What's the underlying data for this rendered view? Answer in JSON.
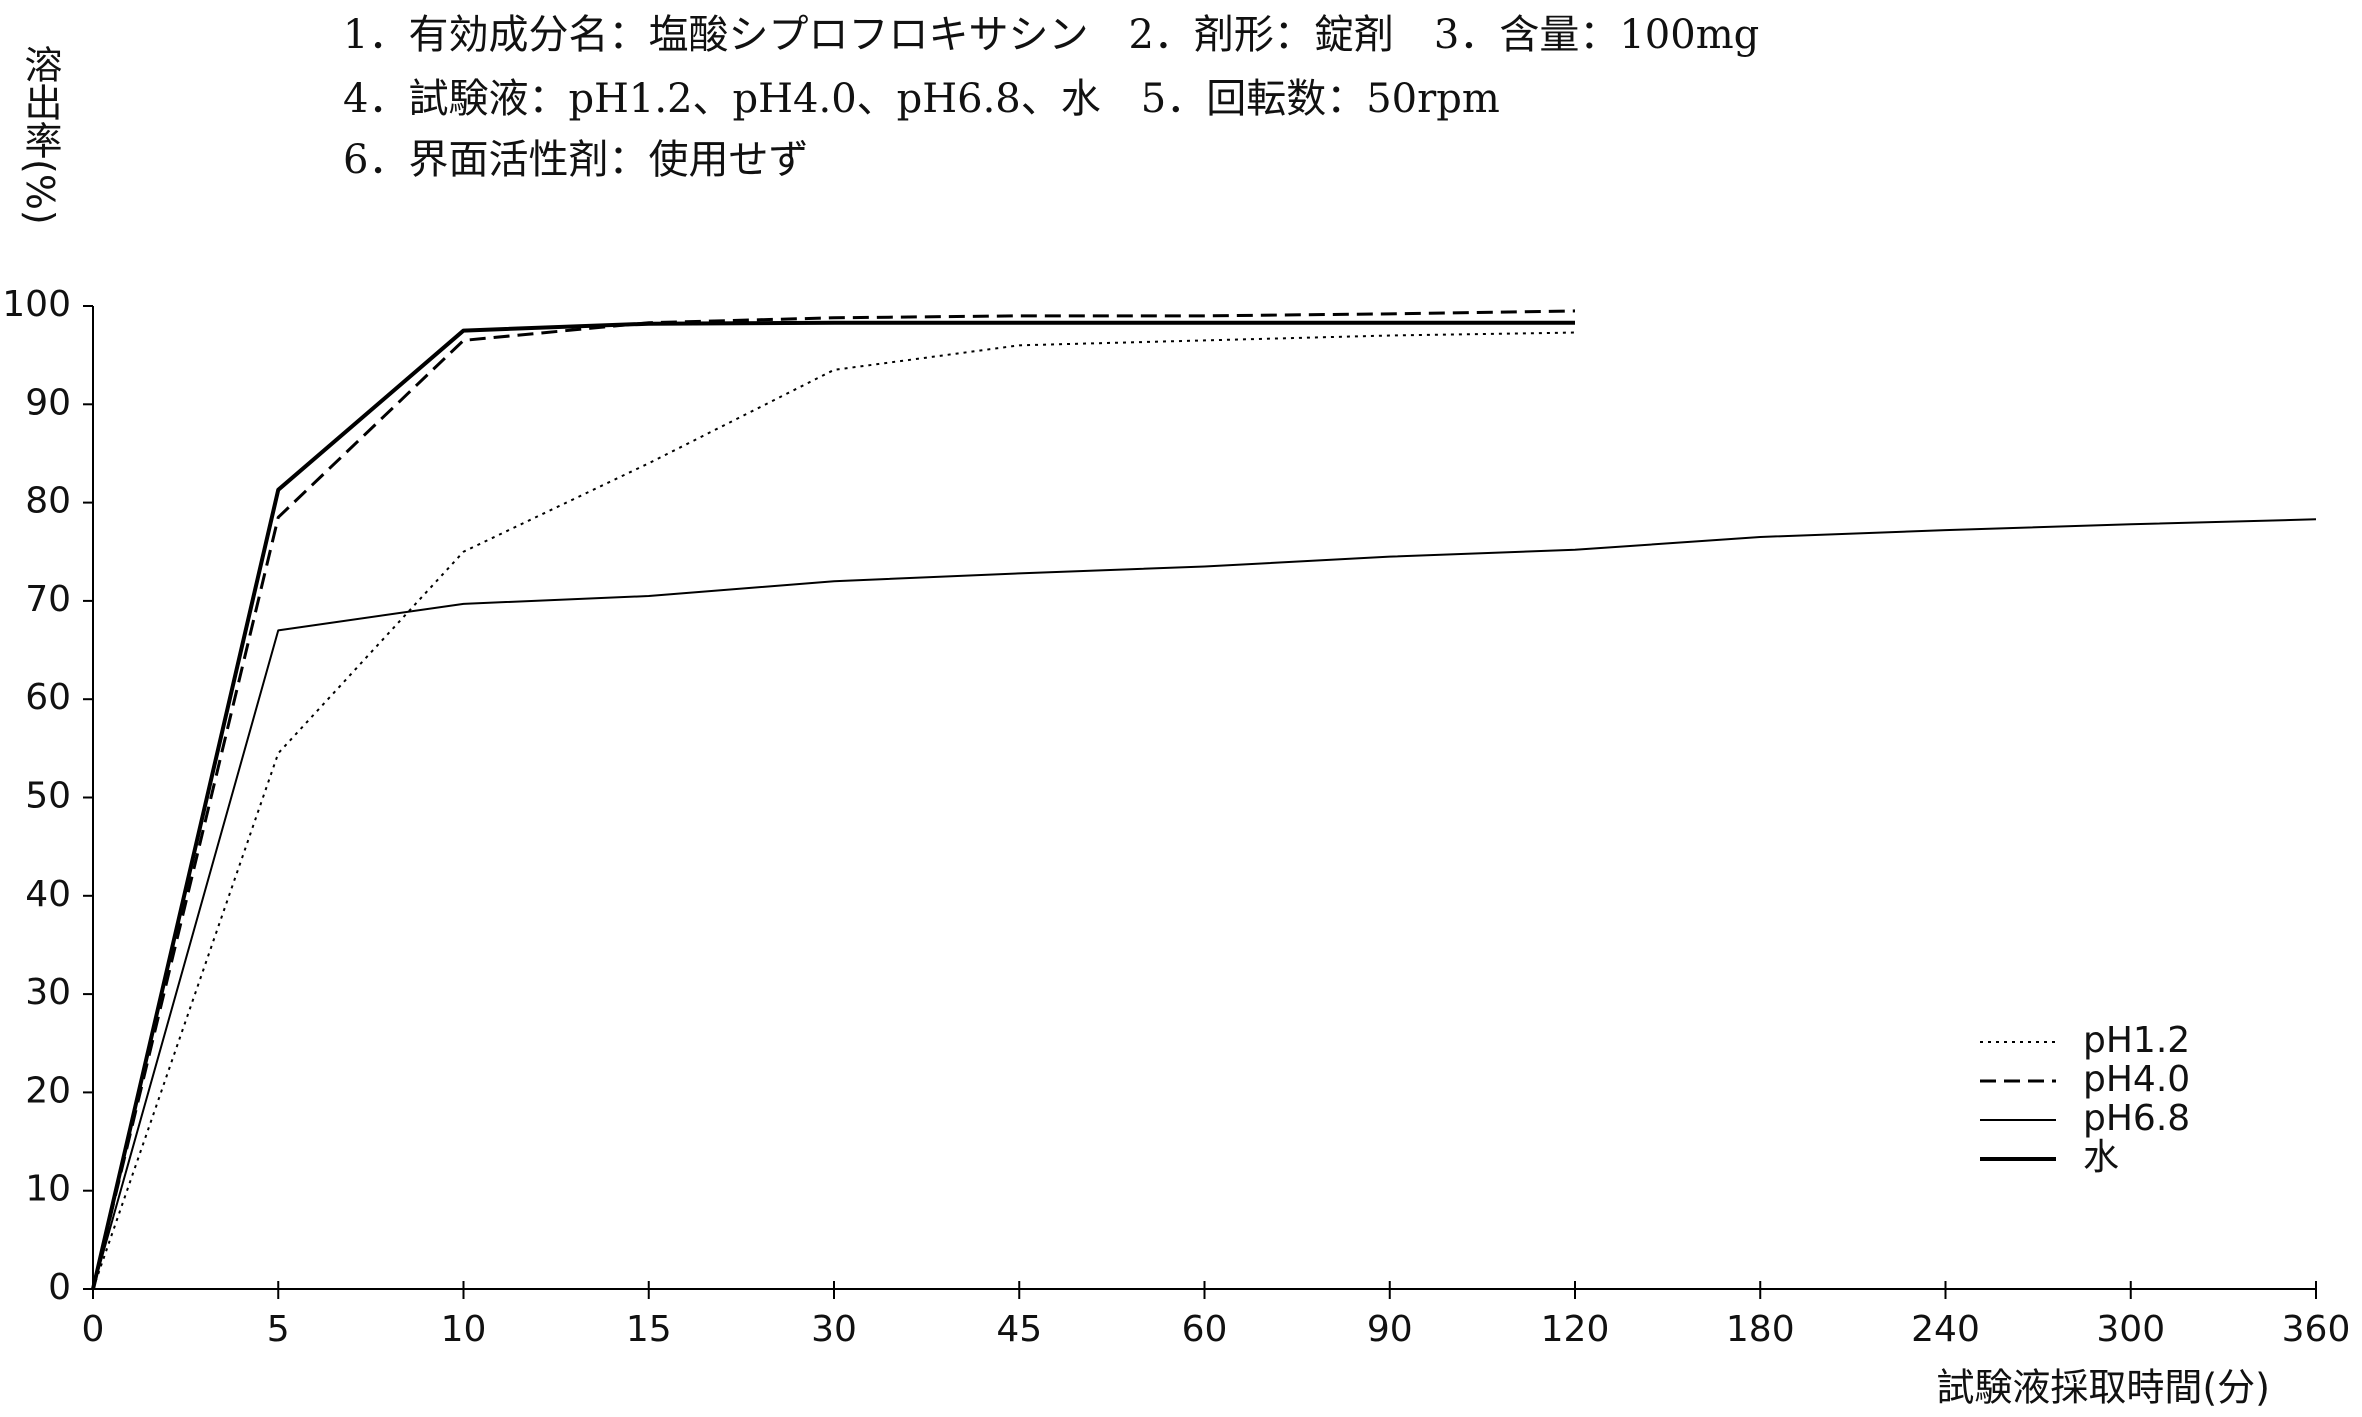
{
  "chart_data": {
    "type": "line",
    "annotations": [
      "1．有効成分名：塩酸シプロフロキサシン　2．剤形：錠剤　3．含量：100mg",
      "4．試験液：pH1.2、pH4.0、pH6.8、水　5．回転数：50rpm",
      "6．界面活性剤：使用せず"
    ],
    "y_label": "溶出率(%)",
    "x_label": "試験液採取時間(分)",
    "categories": [
      "0",
      "5",
      "10",
      "15",
      "30",
      "45",
      "60",
      "90",
      "120",
      "180",
      "240",
      "300",
      "360"
    ],
    "series": [
      {
        "name": "pH1.2",
        "color": "#000000",
        "style": "dotted",
        "values": [
          0,
          54.5,
          75,
          84,
          93.5,
          96,
          96.5,
          97,
          97.3,
          null,
          null,
          null,
          null
        ]
      },
      {
        "name": "pH4.0",
        "color": "#000000",
        "style": "dashed",
        "values": [
          0,
          78.5,
          96.5,
          98.3,
          98.8,
          99,
          99,
          99.2,
          99.5,
          null,
          null,
          null,
          null
        ]
      },
      {
        "name": "pH6.8",
        "color": "#000000",
        "style": "thin",
        "values": [
          0,
          67,
          69.7,
          70.5,
          72,
          72.8,
          73.5,
          74.5,
          75.2,
          76.5,
          77.2,
          77.8,
          78.3
        ]
      },
      {
        "name": "水",
        "color": "#000000",
        "style": "solid",
        "values": [
          0,
          81.3,
          97.5,
          98.2,
          98.3,
          98.3,
          98.3,
          98.3,
          98.3,
          null,
          null,
          null,
          null
        ]
      }
    ],
    "ylim": [
      0,
      100
    ],
    "yticks": [
      0,
      10,
      20,
      30,
      40,
      50,
      60,
      70,
      80,
      90,
      100
    ],
    "grid": false,
    "legend": "lower right"
  }
}
